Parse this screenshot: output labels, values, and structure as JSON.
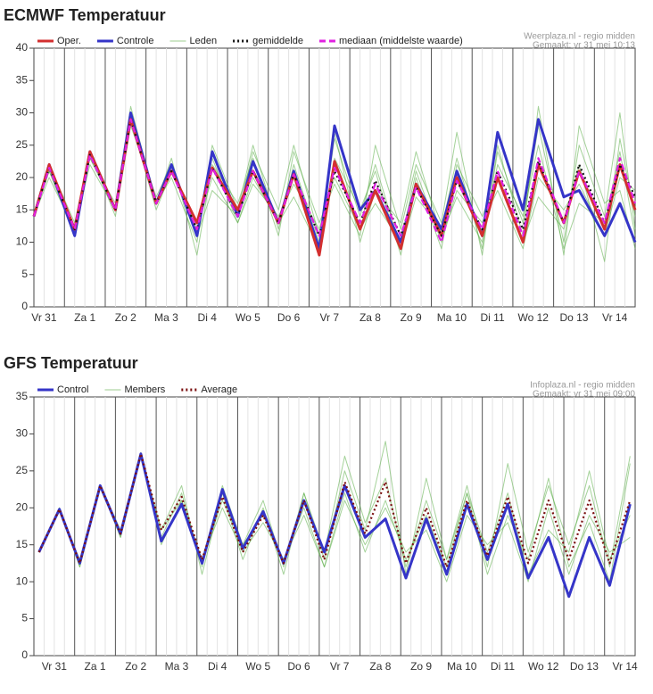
{
  "chart_data": [
    {
      "type": "line",
      "title": "ECMWF Temperatuur",
      "source": "Weerplaza.nl - regio midden",
      "created": "Gemaakt: vr 31 mei 10:13",
      "x": [
        6,
        15,
        30,
        39,
        54,
        63,
        78,
        87,
        102,
        111,
        126,
        135,
        150,
        159,
        174,
        183,
        198,
        207,
        222,
        231,
        246,
        255,
        270,
        279,
        294,
        303,
        318,
        327,
        342,
        351,
        360
      ],
      "xlim": [
        6,
        360
      ],
      "xticks": [
        {
          "value": 12,
          "label": "Vr 31"
        },
        {
          "value": 36,
          "label": "Za 1"
        },
        {
          "value": 60,
          "label": "Zo 2"
        },
        {
          "value": 84,
          "label": "Ma 3"
        },
        {
          "value": 108,
          "label": "Di 4"
        },
        {
          "value": 132,
          "label": "Wo 5"
        },
        {
          "value": 156,
          "label": "Do 6"
        },
        {
          "value": 180,
          "label": "Vr 7"
        },
        {
          "value": 204,
          "label": "Za 8"
        },
        {
          "value": 228,
          "label": "Zo 9"
        },
        {
          "value": 252,
          "label": "Ma 10"
        },
        {
          "value": 276,
          "label": "Di 11"
        },
        {
          "value": 300,
          "label": "Wo 12"
        },
        {
          "value": 324,
          "label": "Do 13"
        },
        {
          "value": 348,
          "label": "Vr 14"
        }
      ],
      "ylim": [
        0,
        40
      ],
      "yticks": [
        0,
        5,
        10,
        15,
        20,
        25,
        30,
        35,
        40
      ],
      "series": [
        {
          "name": "Oper.",
          "color": "#d32f2f",
          "style": "solid",
          "values": [
            14,
            22,
            12,
            24,
            15,
            29,
            16,
            21,
            13,
            21.5,
            15,
            21,
            13,
            20.5,
            8,
            22.5,
            12,
            18,
            9,
            19,
            11,
            20,
            11,
            20,
            10,
            22,
            13,
            21,
            12,
            22,
            15
          ]
        },
        {
          "name": "Controle",
          "color": "#3535c8",
          "style": "solid",
          "values": [
            14,
            22,
            11,
            24,
            15,
            30,
            16,
            22,
            11,
            24,
            14,
            22.5,
            13,
            21,
            9,
            28,
            15,
            18,
            10,
            19,
            12,
            21,
            11,
            27,
            15,
            29,
            17,
            18,
            11,
            16,
            10
          ]
        },
        {
          "name": "Leden",
          "color": "#5aad45",
          "members": [
            [
              14,
              21,
              12,
              23,
              15,
              30,
              16,
              20,
              10,
              25,
              15,
              25,
              12,
              22,
              10,
              26,
              14,
              22,
              9,
              17,
              12,
              23,
              9,
              24,
              13,
              28,
              10,
              25,
              14,
              30,
              12
            ],
            [
              14,
              22,
              13,
              24,
              14,
              28,
              17,
              22,
              12,
              20,
              13,
              19,
              14,
              19,
              12,
              20,
              12,
              16,
              10,
              21,
              10,
              18,
              13,
              18,
              9,
              20,
              15,
              19,
              11,
              20,
              18
            ],
            [
              14,
              21,
              11,
              24,
              15,
              29,
              16,
              23,
              8,
              22,
              16,
              23,
              11,
              24,
              13,
              19,
              11,
              25,
              12,
              22,
              13,
              27,
              8,
              25,
              11,
              31,
              8,
              28,
              16,
              18,
              9
            ],
            [
              14,
              22,
              12,
              23,
              16,
              29,
              15,
              21,
              13,
              23,
              13,
              20,
              13,
              17,
              9,
              23,
              15,
              21,
              8,
              20,
              9,
              22,
              14,
              20,
              10,
              17,
              12,
              22,
              7,
              26,
              14
            ],
            [
              14,
              20,
              12,
              22,
              15,
              31,
              16,
              22,
              11,
              18,
              14,
              24,
              15,
              25,
              11,
              27,
              10,
              18,
              13,
              24,
              11,
              17,
              10,
              22,
              14,
              25,
              9,
              16,
              13,
              24,
              11
            ]
          ]
        },
        {
          "name": "gemiddelde",
          "color": "#111111",
          "style": "dotted",
          "values": [
            14,
            21.5,
            12,
            23.5,
            15,
            29,
            16,
            21,
            12,
            21.5,
            14,
            21,
            13,
            20.5,
            11,
            21,
            13,
            19.5,
            11,
            18.5,
            11,
            19.5,
            12,
            21,
            12,
            22.5,
            13,
            22,
            13,
            22,
            17
          ]
        },
        {
          "name": "mediaan (middelste waarde)",
          "color": "#e020e0",
          "style": "dashed",
          "values": [
            14,
            21.5,
            12,
            23.5,
            15,
            29,
            16,
            21,
            12,
            21.5,
            14,
            21,
            13,
            20.5,
            11,
            21.5,
            13,
            19,
            11,
            18.5,
            10,
            19.5,
            12,
            21,
            11,
            23,
            13,
            21,
            13,
            23,
            16
          ]
        }
      ]
    },
    {
      "type": "line",
      "title": "GFS Temperatuur",
      "source": "Infoplaza.nl - regio midden",
      "created": "Gemaakt: vr 31 mei 09:00",
      "x": [
        3,
        15,
        27,
        39,
        51,
        63,
        75,
        87,
        99,
        111,
        123,
        135,
        147,
        159,
        171,
        183,
        195,
        207,
        219,
        231,
        243,
        255,
        267,
        279,
        291,
        303,
        315,
        327,
        339,
        351
      ],
      "xlim": [
        0,
        354
      ],
      "xticks": [
        {
          "value": 12,
          "label": "Vr 31"
        },
        {
          "value": 36,
          "label": "Za 1"
        },
        {
          "value": 60,
          "label": "Zo 2"
        },
        {
          "value": 84,
          "label": "Ma 3"
        },
        {
          "value": 108,
          "label": "Di 4"
        },
        {
          "value": 132,
          "label": "Wo 5"
        },
        {
          "value": 156,
          "label": "Do 6"
        },
        {
          "value": 180,
          "label": "Vr 7"
        },
        {
          "value": 204,
          "label": "Za 8"
        },
        {
          "value": 228,
          "label": "Zo 9"
        },
        {
          "value": 252,
          "label": "Ma 10"
        },
        {
          "value": 276,
          "label": "Di 11"
        },
        {
          "value": 300,
          "label": "Wo 12"
        },
        {
          "value": 324,
          "label": "Do 13"
        },
        {
          "value": 348,
          "label": "Vr 14"
        }
      ],
      "ylim": [
        0,
        35
      ],
      "yticks": [
        0,
        5,
        10,
        15,
        20,
        25,
        30,
        35
      ],
      "series": [
        {
          "name": "Control",
          "color": "#3535c8",
          "style": "solid",
          "values": [
            14,
            19.8,
            12.5,
            23,
            16.5,
            27.3,
            15.5,
            20.5,
            12.5,
            22.5,
            14.5,
            19.5,
            12.5,
            21,
            14,
            23,
            16,
            18.5,
            10.5,
            18.5,
            11,
            20.5,
            13,
            20.5,
            10.5,
            16,
            8,
            16,
            9.5,
            20.5
          ]
        },
        {
          "name": "Members",
          "color": "#5aad45",
          "members": [
            [
              14,
              20,
              12,
              23,
              16,
              27,
              16,
              22,
              12,
              23,
              15,
              21,
              12,
              22,
              13,
              25,
              17,
              29,
              11,
              24,
              13,
              23,
              12,
              26,
              14,
              23,
              15,
              23,
              12,
              27
            ],
            [
              14,
              19.5,
              13,
              23,
              17,
              27.5,
              15,
              21,
              13,
              20,
              14,
              18,
              13,
              19,
              12,
              21,
              15,
              20,
              14,
              17,
              10,
              19,
              15,
              18,
              10,
              20,
              11,
              19,
              14,
              16
            ],
            [
              14,
              20,
              12,
              23,
              16,
              27,
              17,
              23,
              11,
              22,
              13,
              20,
              11,
              22,
              14,
              27,
              18,
              24,
              12,
              21,
              13,
              22,
              11,
              19,
              13,
              24,
              12,
              18,
              10,
              26
            ],
            [
              14,
              19.8,
              12.5,
              23,
              16.5,
              27,
              17,
              21,
              13,
              21,
              15,
              19,
              13,
              20,
              12,
              22,
              14,
              21,
              13,
              19,
              12,
              22,
              14,
              22,
              11,
              17,
              14,
              25,
              13,
              19
            ]
          ]
        },
        {
          "name": "Average",
          "color": "#7a0f0f",
          "style": "dotted",
          "values": [
            14,
            19.8,
            12.5,
            23,
            16.5,
            27.3,
            17,
            21.5,
            13,
            21.5,
            14,
            19,
            12.5,
            21,
            13,
            23.5,
            16.5,
            23.5,
            12.5,
            20,
            12,
            21,
            13.5,
            21.5,
            12.5,
            21,
            13,
            21,
            12.5,
            21
          ]
        }
      ]
    }
  ]
}
